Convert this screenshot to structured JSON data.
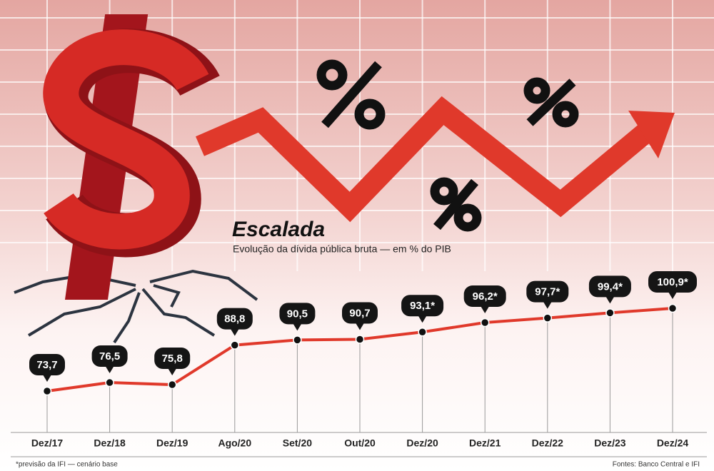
{
  "chart_data": {
    "type": "line",
    "title": "Escalada",
    "subtitle": "Evolução da dívida pública bruta — em % do PIB",
    "categories": [
      "Dez/17",
      "Dez/18",
      "Dez/19",
      "Ago/20",
      "Set/20",
      "Out/20",
      "Dez/20",
      "Dez/21",
      "Dez/22",
      "Dez/23",
      "Dez/24"
    ],
    "values": [
      73.7,
      76.5,
      75.8,
      88.8,
      90.5,
      90.7,
      93.1,
      96.2,
      97.7,
      99.4,
      100.9
    ],
    "value_labels": [
      "73,7",
      "76,5",
      "75,8",
      "88,8",
      "90,5",
      "90,7",
      "93,1*",
      "96,2*",
      "97,7*",
      "99,4*",
      "100,9*"
    ],
    "color": "#e0392b",
    "footnote": "*previsão da IFI — cenário base",
    "source": "Fontes: Banco Central e IFI"
  }
}
